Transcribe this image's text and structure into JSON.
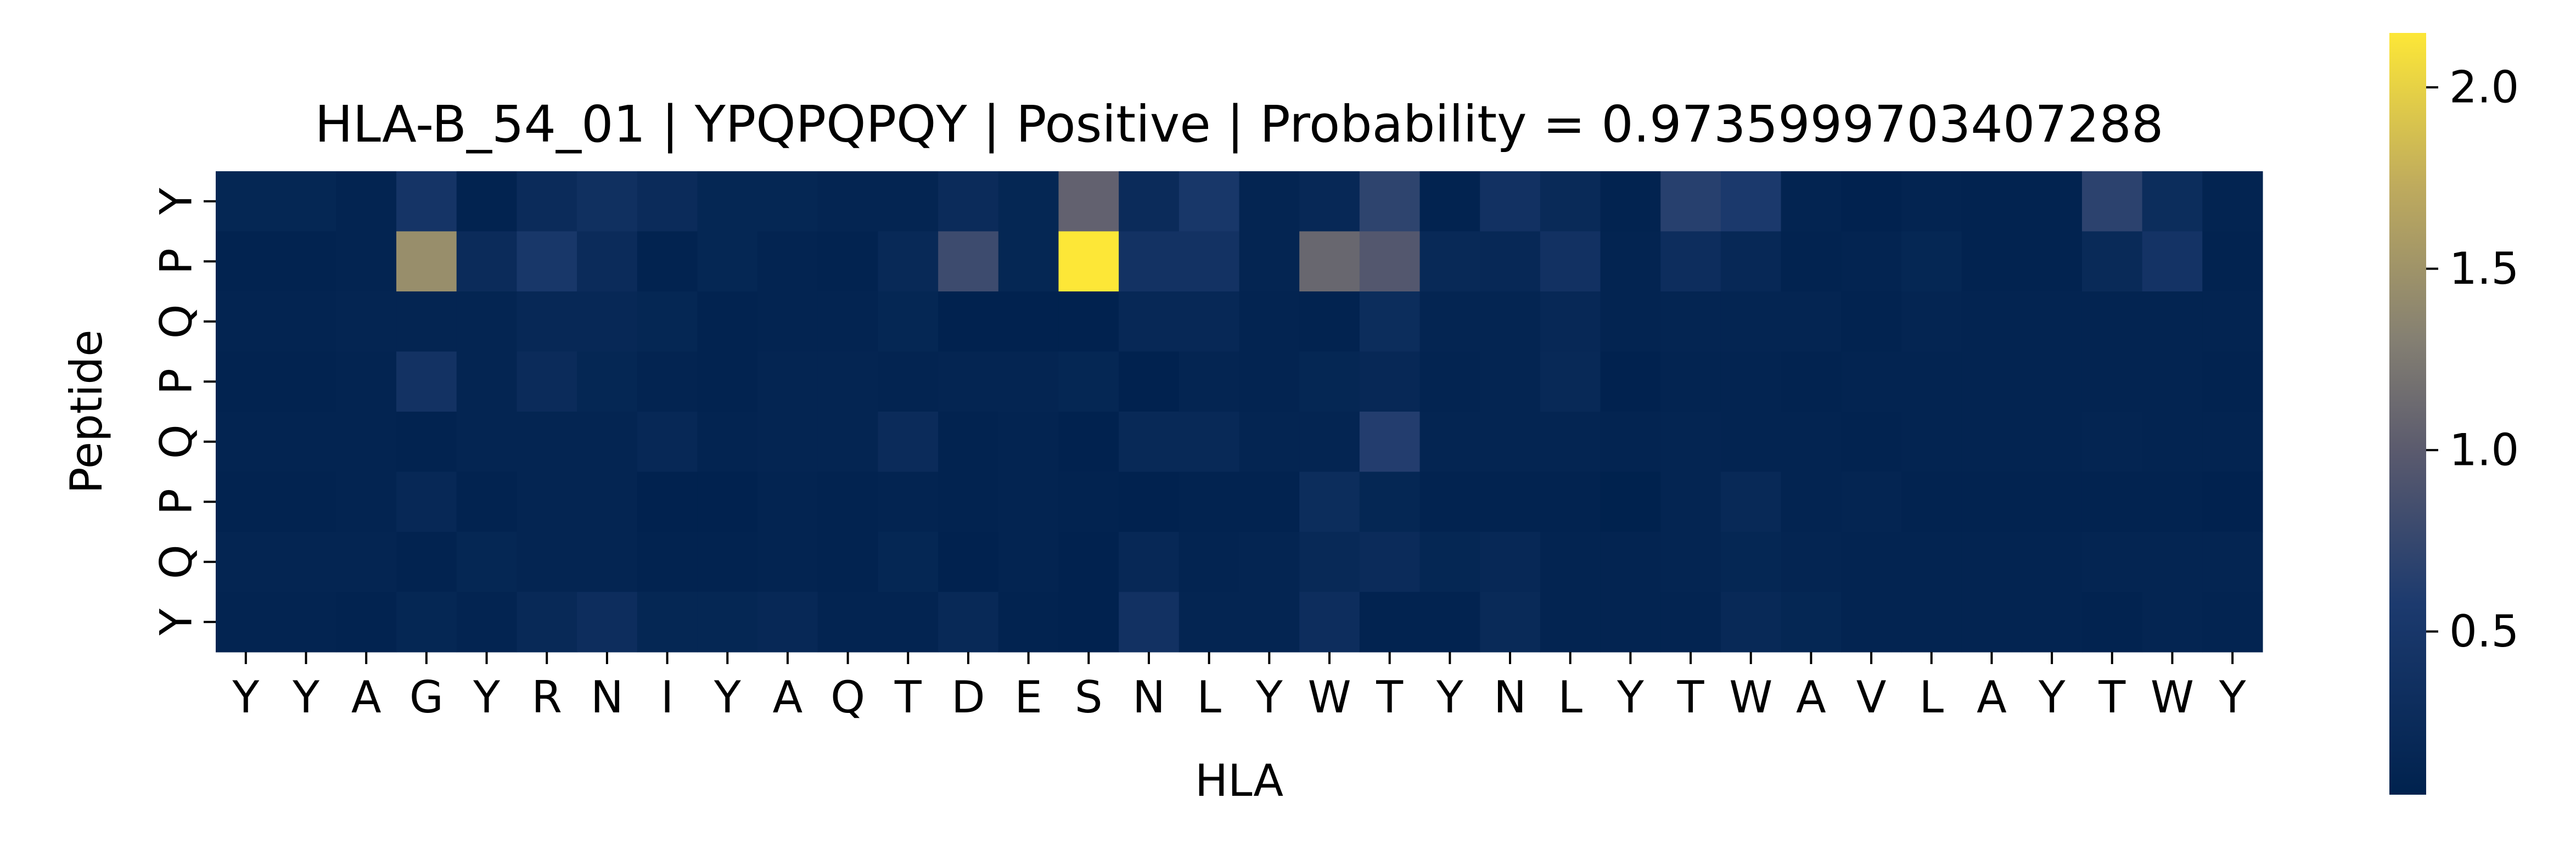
{
  "chart_data": {
    "type": "heatmap",
    "title": "HLA-B_54_01 | YPQPQPQY | Positive | Probability = 0.9735999703407288",
    "xlabel": "HLA",
    "ylabel": "Peptide",
    "x_categories": [
      "Y",
      "Y",
      "A",
      "G",
      "Y",
      "R",
      "N",
      "I",
      "Y",
      "A",
      "Q",
      "T",
      "D",
      "E",
      "S",
      "N",
      "L",
      "Y",
      "W",
      "T",
      "Y",
      "N",
      "L",
      "Y",
      "T",
      "W",
      "A",
      "V",
      "L",
      "A",
      "Y",
      "T",
      "W",
      "Y"
    ],
    "y_categories": [
      "Y",
      "P",
      "Q",
      "P",
      "Q",
      "P",
      "Q",
      "Y"
    ],
    "values": [
      [
        0.15,
        0.15,
        0.1,
        0.45,
        0.08,
        0.25,
        0.35,
        0.25,
        0.15,
        0.15,
        0.12,
        0.12,
        0.25,
        0.15,
        1.05,
        0.25,
        0.5,
        0.12,
        0.18,
        0.7,
        0.08,
        0.38,
        0.22,
        0.08,
        0.65,
        0.55,
        0.1,
        0.06,
        0.1,
        0.08,
        0.08,
        0.68,
        0.28,
        0.1
      ],
      [
        0.08,
        0.08,
        0.1,
        1.45,
        0.25,
        0.5,
        0.25,
        0.08,
        0.15,
        0.1,
        0.08,
        0.2,
        0.8,
        0.15,
        2.15,
        0.4,
        0.4,
        0.12,
        1.1,
        0.95,
        0.2,
        0.18,
        0.38,
        0.1,
        0.3,
        0.18,
        0.08,
        0.1,
        0.15,
        0.08,
        0.08,
        0.22,
        0.42,
        0.08
      ],
      [
        0.1,
        0.1,
        0.12,
        0.12,
        0.12,
        0.18,
        0.18,
        0.15,
        0.08,
        0.1,
        0.1,
        0.15,
        0.06,
        0.06,
        0.06,
        0.18,
        0.18,
        0.1,
        0.08,
        0.28,
        0.12,
        0.12,
        0.18,
        0.1,
        0.12,
        0.12,
        0.12,
        0.08,
        0.12,
        0.1,
        0.1,
        0.1,
        0.1,
        0.1
      ],
      [
        0.08,
        0.08,
        0.1,
        0.4,
        0.12,
        0.25,
        0.15,
        0.1,
        0.08,
        0.12,
        0.12,
        0.1,
        0.12,
        0.12,
        0.15,
        0.06,
        0.12,
        0.1,
        0.15,
        0.18,
        0.1,
        0.12,
        0.2,
        0.06,
        0.1,
        0.1,
        0.08,
        0.1,
        0.1,
        0.1,
        0.1,
        0.1,
        0.1,
        0.08
      ],
      [
        0.1,
        0.1,
        0.1,
        0.08,
        0.12,
        0.12,
        0.12,
        0.18,
        0.1,
        0.12,
        0.12,
        0.25,
        0.08,
        0.1,
        0.06,
        0.2,
        0.2,
        0.12,
        0.12,
        0.62,
        0.12,
        0.12,
        0.12,
        0.1,
        0.12,
        0.1,
        0.1,
        0.08,
        0.1,
        0.1,
        0.1,
        0.12,
        0.1,
        0.1
      ],
      [
        0.08,
        0.08,
        0.1,
        0.18,
        0.08,
        0.12,
        0.12,
        0.06,
        0.06,
        0.1,
        0.08,
        0.1,
        0.08,
        0.1,
        0.08,
        0.06,
        0.08,
        0.08,
        0.28,
        0.15,
        0.08,
        0.08,
        0.08,
        0.05,
        0.12,
        0.2,
        0.1,
        0.12,
        0.08,
        0.08,
        0.08,
        0.08,
        0.08,
        0.06
      ],
      [
        0.12,
        0.12,
        0.12,
        0.08,
        0.15,
        0.12,
        0.12,
        0.08,
        0.08,
        0.1,
        0.08,
        0.15,
        0.06,
        0.1,
        0.06,
        0.18,
        0.1,
        0.12,
        0.2,
        0.25,
        0.15,
        0.18,
        0.1,
        0.1,
        0.12,
        0.15,
        0.12,
        0.1,
        0.1,
        0.1,
        0.1,
        0.12,
        0.12,
        0.12
      ],
      [
        0.1,
        0.1,
        0.08,
        0.15,
        0.1,
        0.2,
        0.3,
        0.15,
        0.15,
        0.18,
        0.1,
        0.1,
        0.2,
        0.08,
        0.06,
        0.38,
        0.12,
        0.12,
        0.3,
        0.08,
        0.08,
        0.22,
        0.1,
        0.1,
        0.1,
        0.2,
        0.15,
        0.1,
        0.1,
        0.1,
        0.1,
        0.08,
        0.12,
        0.1
      ]
    ],
    "colorbar": {
      "colormap": "cividis",
      "vmin": 0.05,
      "vmax": 2.15,
      "ticks": [
        "0.5",
        "1.0",
        "1.5",
        "2.0"
      ],
      "tick_values": [
        0.5,
        1.0,
        1.5,
        2.0
      ]
    }
  }
}
